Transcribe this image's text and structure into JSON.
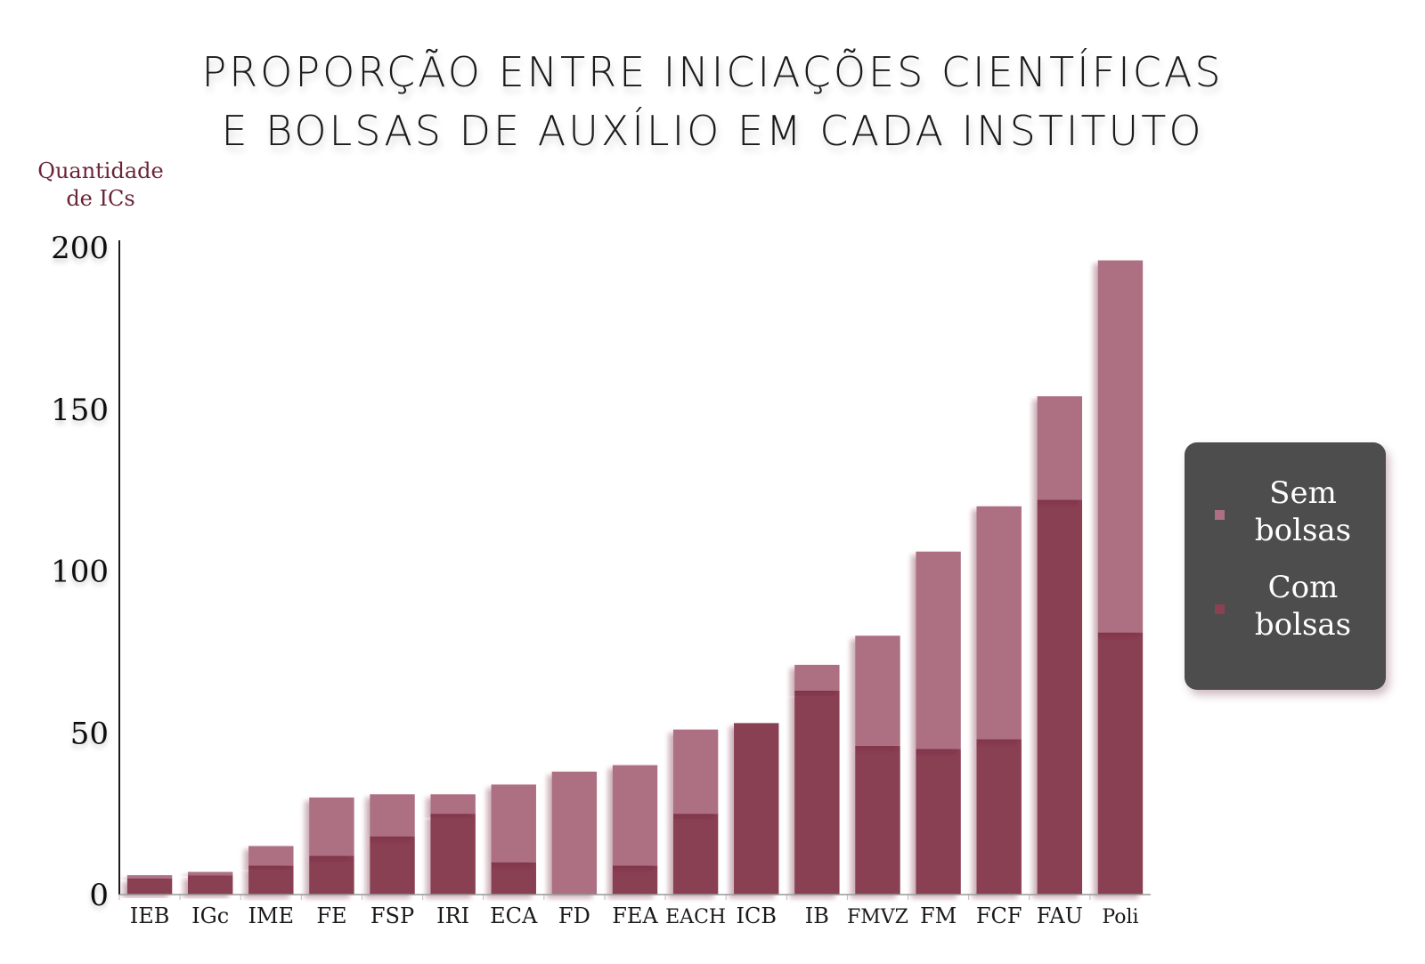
{
  "title_lines": [
    "PROPORÇÃO ENTRE INICIAÇÕES CIENTÍFICAS",
    "E BOLSAS DE AUXÍLIO EM CADA INSTITUTO"
  ],
  "colors": {
    "sem_bolsas": "#ad6f83",
    "com_bolsas": "#8a4152",
    "legend_bg": "#4d4d4d",
    "ylabel": "#6b2437",
    "axis": "#1a1a1a"
  },
  "legend": {
    "items": [
      {
        "line1": "Sem",
        "line2": "bolsas",
        "color": "#ad6f83"
      },
      {
        "line1": "Com",
        "line2": "bolsas",
        "color": "#8a4152"
      }
    ]
  },
  "chart_data": {
    "type": "bar",
    "stacked": true,
    "ylabel_lines": [
      "Quantidade",
      "de ICs"
    ],
    "xlabel": "",
    "ylim": [
      0,
      200
    ],
    "yticks": [
      0,
      50,
      100,
      150,
      200
    ],
    "grid": false,
    "legend_position": "right",
    "categories": [
      "IEB",
      "IGc",
      "IME",
      "FE",
      "FSP",
      "IRI",
      "ECA",
      "FD",
      "FEA",
      "EACH",
      "ICB",
      "IB",
      "FMVZ",
      "FM",
      "FCF",
      "FAU",
      "Poli"
    ],
    "series": [
      {
        "name": "Com bolsas",
        "color": "#8a4152",
        "values": [
          5,
          6,
          9,
          12,
          18,
          25,
          10,
          0,
          9,
          25,
          53,
          63,
          46,
          45,
          48,
          122,
          81
        ]
      },
      {
        "name": "Sem bolsas",
        "color": "#ad6f83",
        "values": [
          1,
          1,
          6,
          18,
          13,
          6,
          24,
          38,
          31,
          26,
          0,
          8,
          34,
          61,
          72,
          32,
          115
        ]
      }
    ]
  }
}
